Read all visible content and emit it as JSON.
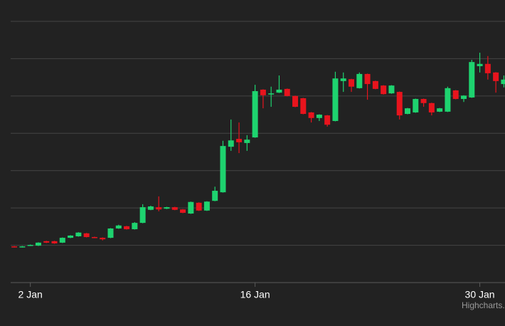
{
  "chart_data": {
    "type": "candlestick",
    "credit": "Highcharts.com",
    "x": [
      1,
      1.5,
      2,
      2.5,
      3,
      3.5,
      4,
      4.5,
      5,
      5.5,
      6,
      6.5,
      7,
      7.5,
      8,
      8.5,
      9,
      9.5,
      10,
      10.5,
      11,
      11.5,
      12,
      12.5,
      13,
      13.5,
      14,
      14.5,
      15,
      15.5,
      16,
      16.5,
      17,
      17.5,
      18,
      18.5,
      19,
      19.5,
      20,
      20.5,
      21,
      21.5,
      22,
      22.5,
      23,
      23.5,
      24,
      24.5,
      25,
      25.5,
      26,
      26.5,
      27,
      27.5,
      28,
      28.5,
      29,
      29.5,
      30,
      30.5,
      31,
      31.5
    ],
    "open": [
      0.97,
      0.95,
      0.99,
      0.99,
      1.11,
      1.11,
      1.07,
      1.2,
      1.24,
      1.32,
      1.22,
      1.2,
      1.2,
      1.45,
      1.51,
      1.43,
      1.6,
      1.95,
      2.02,
      1.98,
      2.02,
      1.96,
      1.85,
      2.14,
      1.93,
      2.19,
      2.42,
      3.64,
      3.85,
      3.74,
      3.89,
      5.17,
      5.04,
      5.09,
      5.19,
      5.0,
      4.94,
      4.56,
      4.41,
      4.48,
      4.33,
      5.4,
      5.45,
      5.21,
      5.59,
      5.4,
      5.28,
      5.07,
      5.11,
      4.52,
      4.56,
      4.92,
      4.81,
      4.58,
      4.58,
      5.15,
      4.92,
      4.96,
      5.8,
      5.86,
      5.63,
      5.32
    ],
    "high": [
      0.98,
      0.98,
      1.02,
      1.08,
      1.12,
      1.12,
      1.21,
      1.27,
      1.35,
      1.33,
      1.23,
      1.21,
      1.46,
      1.55,
      1.52,
      1.62,
      2.1,
      2.06,
      2.31,
      2.03,
      2.03,
      1.97,
      2.17,
      2.15,
      2.18,
      2.57,
      3.8,
      4.37,
      4.29,
      3.95,
      5.3,
      5.18,
      5.25,
      5.55,
      5.2,
      5.01,
      4.95,
      4.57,
      4.51,
      4.49,
      5.65,
      5.63,
      5.46,
      5.63,
      5.6,
      5.41,
      5.29,
      5.29,
      5.12,
      4.68,
      4.93,
      4.93,
      4.82,
      4.68,
      5.25,
      5.16,
      5.02,
      5.97,
      6.16,
      6.07,
      5.64,
      5.55
    ],
    "low": [
      0.94,
      0.94,
      0.98,
      0.98,
      1.06,
      1.04,
      1.06,
      1.19,
      1.23,
      1.21,
      1.19,
      1.13,
      1.19,
      1.44,
      1.42,
      1.42,
      1.59,
      1.94,
      1.91,
      1.97,
      1.94,
      1.86,
      1.84,
      1.92,
      1.92,
      2.18,
      2.41,
      3.53,
      3.47,
      3.53,
      3.88,
      4.67,
      4.71,
      5.08,
      4.99,
      4.7,
      4.51,
      4.29,
      4.33,
      4.18,
      4.32,
      5.11,
      5.11,
      5.2,
      4.9,
      5.18,
      5.04,
      5.06,
      4.37,
      4.51,
      4.55,
      4.71,
      4.48,
      4.57,
      4.57,
      4.91,
      4.84,
      4.95,
      5.63,
      5.44,
      5.09,
      5.23
    ],
    "close": [
      0.95,
      0.97,
      1.01,
      1.07,
      1.07,
      1.05,
      1.2,
      1.26,
      1.34,
      1.22,
      1.2,
      1.16,
      1.45,
      1.53,
      1.43,
      1.6,
      2.02,
      2.04,
      1.96,
      2.02,
      1.95,
      1.87,
      2.16,
      1.93,
      2.17,
      2.46,
      3.66,
      3.81,
      3.76,
      3.83,
      5.13,
      5.02,
      5.07,
      5.17,
      5.0,
      4.71,
      4.52,
      4.41,
      4.5,
      4.23,
      5.47,
      5.47,
      5.25,
      5.59,
      5.32,
      5.19,
      5.05,
      5.28,
      4.48,
      4.67,
      4.92,
      4.81,
      4.56,
      4.67,
      5.21,
      4.92,
      5.01,
      5.91,
      5.86,
      5.61,
      5.4,
      5.44
    ],
    "up_color": "#1ed36f",
    "down_color": "#e8141d",
    "xlim": [
      0.11,
      31.57
    ],
    "xticks": [
      {
        "value": 2,
        "label": "2 Jan"
      },
      {
        "value": 16,
        "label": "16 Jan"
      },
      {
        "value": 30,
        "label": "30 Jan"
      }
    ],
    "ylim": [
      0,
      7
    ],
    "yticks": [
      0,
      1,
      2,
      3,
      4,
      5,
      6,
      7
    ],
    "grid": true
  }
}
